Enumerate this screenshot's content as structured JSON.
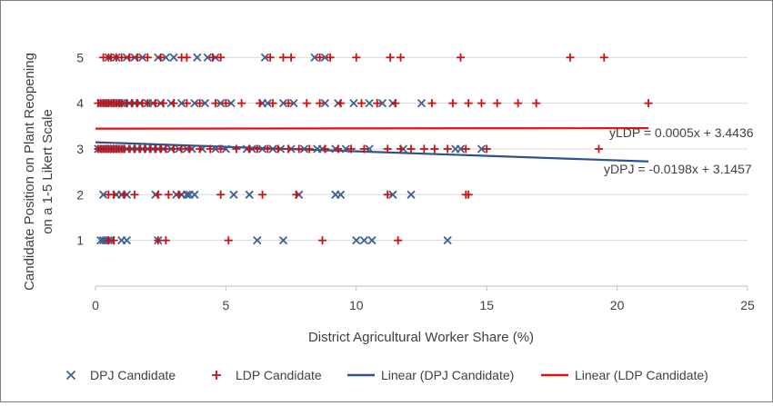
{
  "chart_data": {
    "type": "scatter",
    "xlabel": "District Agricultural Worker Share (%)",
    "ylabel_lines": [
      "Candidate Position on Plant Reopening",
      "on a 1-5 Likert Scale"
    ],
    "xlim": [
      0,
      25
    ],
    "ylim": [
      0,
      5.8
    ],
    "xticks": [
      "0",
      "5",
      "10",
      "15",
      "20",
      "25"
    ],
    "yticks": [
      "1",
      "2",
      "3",
      "4",
      "5"
    ],
    "grid": "horizontal",
    "legend_position": "bottom",
    "colors": {
      "dpj": "#41608f",
      "ldp": "#cc1111",
      "dpj_line": "#2e528f",
      "ldp_line": "#e01010"
    },
    "legend": [
      {
        "label": "DPJ Candidate",
        "marker": "x",
        "color": "#41608f"
      },
      {
        "label": "LDP Candidate",
        "marker": "+",
        "color": "#cc1111"
      },
      {
        "label": "Linear (DPJ Candidate)",
        "marker": "line",
        "color": "#2e528f"
      },
      {
        "label": "Linear (LDP Candidate)",
        "marker": "line",
        "color": "#e01010"
      }
    ],
    "annotations": {
      "ldp_eq": "yLDP = 0.0005x + 3.4436",
      "dpj_eq": "yDPJ = -0.0198x + 3.1457"
    },
    "series": [
      {
        "name": "DPJ Candidate",
        "marker": "x",
        "points": [
          [
            0.2,
            1
          ],
          [
            0.3,
            1
          ],
          [
            0.4,
            1
          ],
          [
            0.5,
            1
          ],
          [
            0.6,
            1
          ],
          [
            1.0,
            1
          ],
          [
            1.2,
            1
          ],
          [
            2.4,
            1
          ],
          [
            6.2,
            1
          ],
          [
            7.2,
            1
          ],
          [
            10.0,
            1
          ],
          [
            10.3,
            1
          ],
          [
            10.6,
            1
          ],
          [
            13.5,
            1
          ],
          [
            0.3,
            2
          ],
          [
            0.8,
            2
          ],
          [
            1.0,
            2
          ],
          [
            1.2,
            2
          ],
          [
            2.3,
            2
          ],
          [
            3.1,
            2
          ],
          [
            3.3,
            2
          ],
          [
            3.5,
            2
          ],
          [
            3.6,
            2
          ],
          [
            3.8,
            2
          ],
          [
            5.3,
            2
          ],
          [
            5.9,
            2
          ],
          [
            7.8,
            2
          ],
          [
            9.2,
            2
          ],
          [
            9.4,
            2
          ],
          [
            11.4,
            2
          ],
          [
            12.1,
            2
          ],
          [
            0.1,
            3
          ],
          [
            0.2,
            3
          ],
          [
            0.3,
            3
          ],
          [
            0.4,
            3
          ],
          [
            0.5,
            3
          ],
          [
            0.6,
            3
          ],
          [
            0.7,
            3
          ],
          [
            0.8,
            3
          ],
          [
            0.9,
            3
          ],
          [
            1.0,
            3
          ],
          [
            1.2,
            3
          ],
          [
            1.4,
            3
          ],
          [
            1.6,
            3
          ],
          [
            1.8,
            3
          ],
          [
            2.0,
            3
          ],
          [
            2.2,
            3
          ],
          [
            2.4,
            3
          ],
          [
            2.6,
            3
          ],
          [
            2.9,
            3
          ],
          [
            3.2,
            3
          ],
          [
            3.5,
            3
          ],
          [
            3.7,
            3
          ],
          [
            4.1,
            3
          ],
          [
            4.6,
            3
          ],
          [
            5.0,
            3
          ],
          [
            5.8,
            3
          ],
          [
            6.0,
            3
          ],
          [
            6.4,
            3
          ],
          [
            6.8,
            3
          ],
          [
            7.1,
            3
          ],
          [
            7.5,
            3
          ],
          [
            8.0,
            3
          ],
          [
            8.5,
            3
          ],
          [
            8.7,
            3
          ],
          [
            9.2,
            3
          ],
          [
            9.6,
            3
          ],
          [
            10.5,
            3
          ],
          [
            11.8,
            3
          ],
          [
            13.8,
            3
          ],
          [
            14.0,
            3
          ],
          [
            14.8,
            3
          ],
          [
            0.2,
            4
          ],
          [
            0.3,
            4
          ],
          [
            0.4,
            4
          ],
          [
            0.5,
            4
          ],
          [
            0.6,
            4
          ],
          [
            0.8,
            4
          ],
          [
            0.9,
            4
          ],
          [
            1.0,
            4
          ],
          [
            1.1,
            4
          ],
          [
            1.3,
            4
          ],
          [
            1.5,
            4
          ],
          [
            1.7,
            4
          ],
          [
            2.0,
            4
          ],
          [
            2.2,
            4
          ],
          [
            2.5,
            4
          ],
          [
            2.9,
            4
          ],
          [
            3.3,
            4
          ],
          [
            3.8,
            4
          ],
          [
            4.2,
            4
          ],
          [
            4.8,
            4
          ],
          [
            5.2,
            4
          ],
          [
            6.4,
            4
          ],
          [
            6.6,
            4
          ],
          [
            7.2,
            4
          ],
          [
            7.6,
            4
          ],
          [
            8.8,
            4
          ],
          [
            9.3,
            4
          ],
          [
            9.9,
            4
          ],
          [
            10.5,
            4
          ],
          [
            11.0,
            4
          ],
          [
            11.4,
            4
          ],
          [
            12.5,
            4
          ],
          [
            0.5,
            5
          ],
          [
            0.8,
            5
          ],
          [
            1.2,
            5
          ],
          [
            1.5,
            5
          ],
          [
            1.8,
            5
          ],
          [
            2.4,
            5
          ],
          [
            2.7,
            5
          ],
          [
            3.0,
            5
          ],
          [
            3.9,
            5
          ],
          [
            4.3,
            5
          ],
          [
            4.6,
            5
          ],
          [
            6.5,
            5
          ],
          [
            8.4,
            5
          ],
          [
            8.8,
            5
          ]
        ]
      },
      {
        "name": "LDP Candidate",
        "marker": "+",
        "points": [
          [
            0.5,
            1
          ],
          [
            0.7,
            1
          ],
          [
            2.4,
            1
          ],
          [
            2.7,
            1
          ],
          [
            5.1,
            1
          ],
          [
            8.7,
            1
          ],
          [
            11.6,
            1
          ],
          [
            0.5,
            2
          ],
          [
            0.7,
            2
          ],
          [
            1.1,
            2
          ],
          [
            1.5,
            2
          ],
          [
            2.4,
            2
          ],
          [
            2.8,
            2
          ],
          [
            3.2,
            2
          ],
          [
            4.8,
            2
          ],
          [
            6.4,
            2
          ],
          [
            7.7,
            2
          ],
          [
            11.2,
            2
          ],
          [
            14.2,
            2
          ],
          [
            14.3,
            2
          ],
          [
            0.1,
            3
          ],
          [
            0.2,
            3
          ],
          [
            0.3,
            3
          ],
          [
            0.4,
            3
          ],
          [
            0.5,
            3
          ],
          [
            0.6,
            3
          ],
          [
            0.7,
            3
          ],
          [
            0.8,
            3
          ],
          [
            0.9,
            3
          ],
          [
            1.0,
            3
          ],
          [
            1.1,
            3
          ],
          [
            1.3,
            3
          ],
          [
            1.5,
            3
          ],
          [
            1.7,
            3
          ],
          [
            1.9,
            3
          ],
          [
            2.1,
            3
          ],
          [
            2.3,
            3
          ],
          [
            2.5,
            3
          ],
          [
            2.7,
            3
          ],
          [
            3.0,
            3
          ],
          [
            3.3,
            3
          ],
          [
            3.6,
            3
          ],
          [
            4.0,
            3
          ],
          [
            4.4,
            3
          ],
          [
            4.8,
            3
          ],
          [
            5.4,
            3
          ],
          [
            5.9,
            3
          ],
          [
            6.2,
            3
          ],
          [
            6.6,
            3
          ],
          [
            7.0,
            3
          ],
          [
            7.4,
            3
          ],
          [
            7.8,
            3
          ],
          [
            8.2,
            3
          ],
          [
            8.8,
            3
          ],
          [
            9.3,
            3
          ],
          [
            9.8,
            3
          ],
          [
            10.3,
            3
          ],
          [
            11.2,
            3
          ],
          [
            11.7,
            3
          ],
          [
            12.1,
            3
          ],
          [
            12.6,
            3
          ],
          [
            13.0,
            3
          ],
          [
            13.5,
            3
          ],
          [
            14.2,
            3
          ],
          [
            15.0,
            3
          ],
          [
            19.3,
            3
          ],
          [
            0.1,
            4
          ],
          [
            0.2,
            4
          ],
          [
            0.3,
            4
          ],
          [
            0.4,
            4
          ],
          [
            0.5,
            4
          ],
          [
            0.6,
            4
          ],
          [
            0.7,
            4
          ],
          [
            0.8,
            4
          ],
          [
            0.9,
            4
          ],
          [
            1.0,
            4
          ],
          [
            1.2,
            4
          ],
          [
            1.4,
            4
          ],
          [
            1.6,
            4
          ],
          [
            1.8,
            4
          ],
          [
            2.0,
            4
          ],
          [
            2.3,
            4
          ],
          [
            2.6,
            4
          ],
          [
            3.0,
            4
          ],
          [
            3.5,
            4
          ],
          [
            4.0,
            4
          ],
          [
            4.6,
            4
          ],
          [
            5.0,
            4
          ],
          [
            5.6,
            4
          ],
          [
            6.3,
            4
          ],
          [
            6.8,
            4
          ],
          [
            7.4,
            4
          ],
          [
            8.1,
            4
          ],
          [
            8.6,
            4
          ],
          [
            9.4,
            4
          ],
          [
            10.2,
            4
          ],
          [
            10.8,
            4
          ],
          [
            11.5,
            4
          ],
          [
            12.9,
            4
          ],
          [
            13.7,
            4
          ],
          [
            14.3,
            4
          ],
          [
            14.8,
            4
          ],
          [
            15.4,
            4
          ],
          [
            16.2,
            4
          ],
          [
            16.9,
            4
          ],
          [
            21.2,
            4
          ],
          [
            0.3,
            5
          ],
          [
            0.5,
            5
          ],
          [
            0.6,
            5
          ],
          [
            0.8,
            5
          ],
          [
            1.0,
            5
          ],
          [
            1.3,
            5
          ],
          [
            1.6,
            5
          ],
          [
            2.0,
            5
          ],
          [
            2.5,
            5
          ],
          [
            3.3,
            5
          ],
          [
            3.5,
            5
          ],
          [
            4.5,
            5
          ],
          [
            4.8,
            5
          ],
          [
            6.7,
            5
          ],
          [
            7.2,
            5
          ],
          [
            7.5,
            5
          ],
          [
            8.6,
            5
          ],
          [
            9.0,
            5
          ],
          [
            10.0,
            5
          ],
          [
            11.3,
            5
          ],
          [
            11.7,
            5
          ],
          [
            14.0,
            5
          ],
          [
            18.2,
            5
          ],
          [
            19.5,
            5
          ]
        ]
      },
      {
        "name": "Linear (DPJ Candidate)",
        "type": "line",
        "x": [
          0,
          21.2
        ],
        "y": [
          3.1457,
          2.7259
        ]
      },
      {
        "name": "Linear (LDP Candidate)",
        "type": "line",
        "x": [
          0,
          21.2
        ],
        "y": [
          3.4436,
          3.4542
        ]
      }
    ]
  }
}
